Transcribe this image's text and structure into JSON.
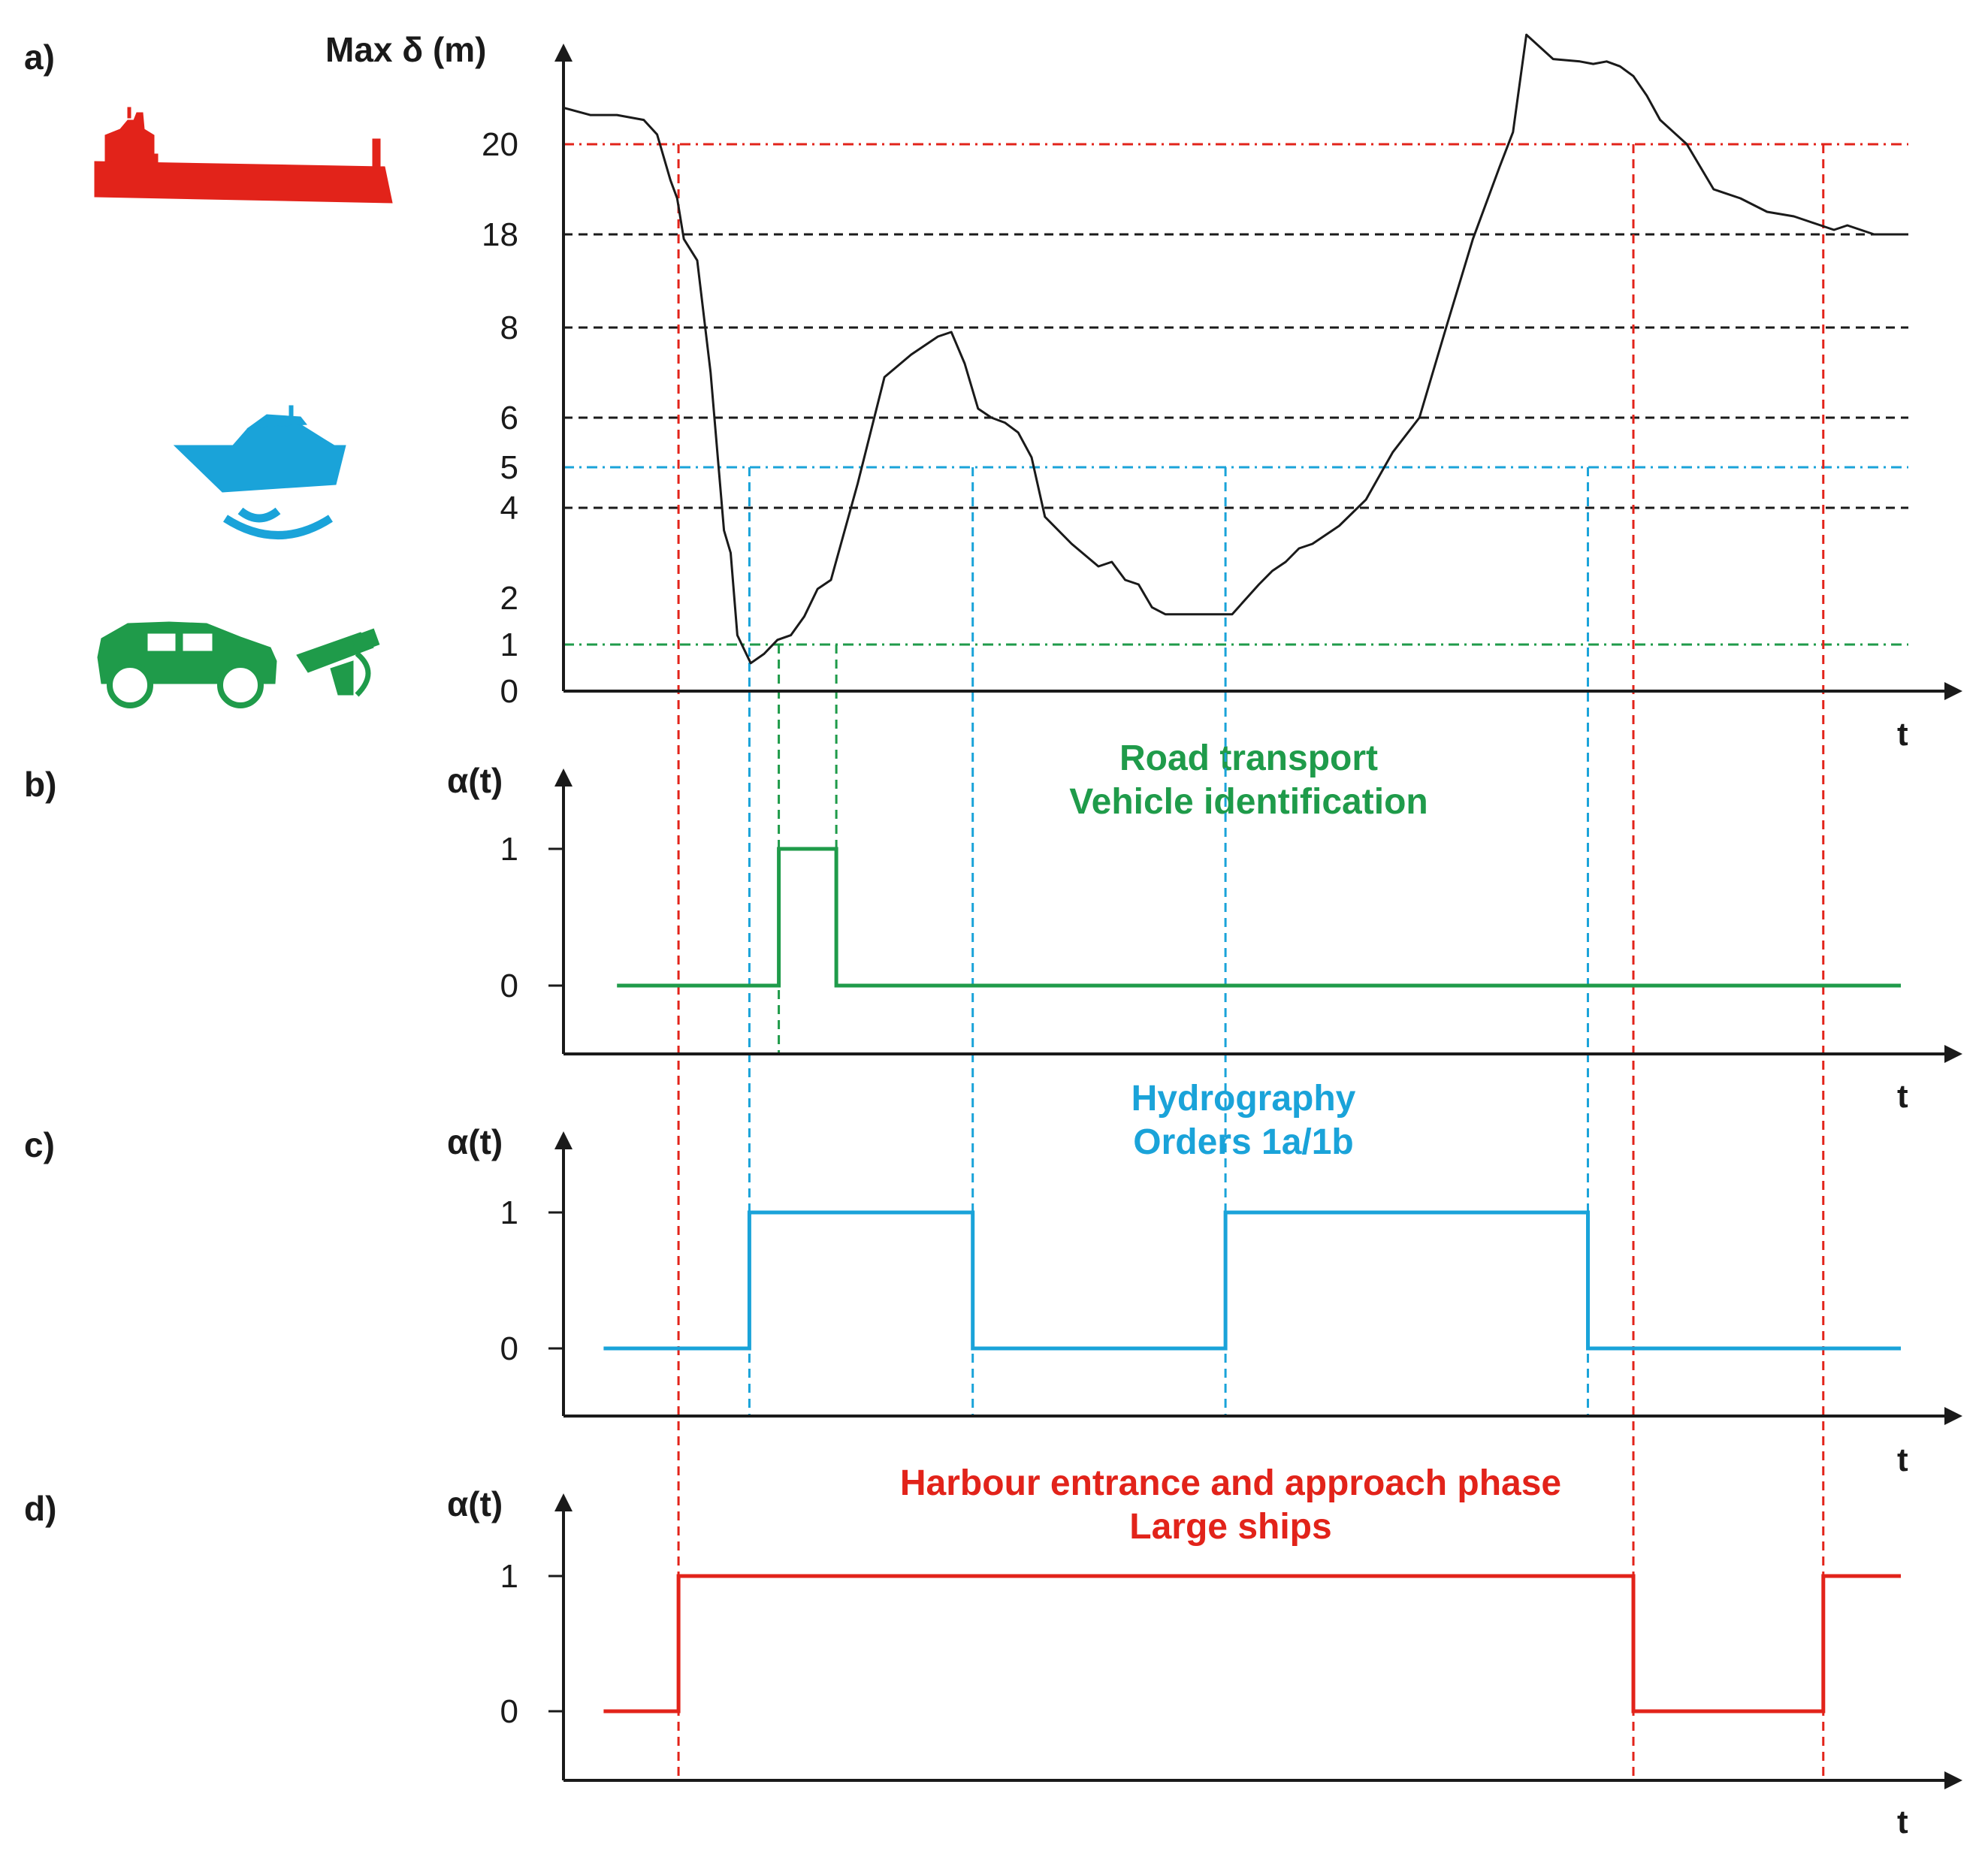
{
  "colors": {
    "ship": "#e2231a",
    "hydro": "#1aa3d9",
    "road": "#1f9b4a",
    "black": "#1a1a1a",
    "gray_dash": "#333333"
  },
  "icons": {
    "a_ship": "large-ship-icon",
    "a_boat": "survey-boat-icon",
    "a_car": "car-icon",
    "a_camera": "camera-icon"
  },
  "chart_data": [
    {
      "panel": "a)",
      "type": "line",
      "title": "",
      "ylabel": "Max δ (m)",
      "xlabel": "t",
      "yticks": [
        {
          "value": 20,
          "label": "20",
          "color": "ship"
        },
        {
          "value": 18,
          "label": "18",
          "color": "black"
        },
        {
          "value": 8,
          "label": "8",
          "color": "black"
        },
        {
          "value": 6,
          "label": "6",
          "color": "black"
        },
        {
          "value": 5,
          "label": "5",
          "color": "hydro"
        },
        {
          "value": 4,
          "label": "4",
          "color": "black"
        },
        {
          "value": 2,
          "label": "2",
          "color": "black"
        },
        {
          "value": 1,
          "label": "1",
          "color": "road"
        },
        {
          "value": 0,
          "label": "0",
          "color": "black"
        }
      ],
      "thresholds": [
        {
          "value": 20,
          "color": "ship",
          "style": "dashdot"
        },
        {
          "value": 18,
          "color": "black",
          "style": "dash"
        },
        {
          "value": 8,
          "color": "black",
          "style": "dash"
        },
        {
          "value": 6,
          "color": "black",
          "style": "dash"
        },
        {
          "value": 5,
          "color": "hydro",
          "style": "dashdot"
        },
        {
          "value": 4,
          "color": "black",
          "style": "dash"
        },
        {
          "value": 1,
          "color": "road",
          "style": "dashdot"
        }
      ],
      "x_range": [
        0,
        100
      ],
      "series": [
        {
          "x": [
            0,
            2,
            4,
            6,
            7,
            8,
            8.5,
            9,
            10,
            11,
            12,
            12.5,
            13,
            14,
            15,
            16,
            17,
            18,
            19,
            20,
            22,
            24,
            26,
            28,
            29,
            30,
            31,
            32,
            33,
            34,
            35,
            36,
            38,
            40,
            41,
            42,
            43,
            44,
            45,
            46,
            47,
            48,
            50,
            52,
            53,
            54,
            55,
            56,
            58,
            60,
            62,
            64,
            66,
            68,
            70,
            71,
            72,
            74,
            76,
            77,
            78,
            79,
            80,
            81,
            82,
            83,
            84,
            85,
            86,
            88,
            90,
            92,
            93,
            94,
            95,
            96,
            97,
            98,
            99,
            100
          ],
          "y": [
            21.5,
            21.2,
            21.2,
            21.0,
            20.4,
            19.2,
            18.8,
            17.5,
            15.2,
            7.0,
            3.5,
            3.0,
            1.2,
            0.6,
            0.8,
            1.1,
            1.2,
            1.6,
            2.2,
            2.4,
            4.6,
            6.9,
            7.4,
            7.8,
            7.9,
            7.2,
            6.2,
            6.0,
            5.9,
            5.7,
            5.2,
            3.8,
            3.2,
            2.7,
            2.8,
            2.4,
            2.3,
            1.8,
            1.65,
            1.65,
            1.65,
            1.65,
            1.65,
            2.3,
            2.6,
            2.8,
            3.1,
            3.2,
            3.6,
            4.2,
            5.3,
            6.0,
            8.0,
            17.5,
            19.5,
            20.5,
            24.5,
            23.5,
            23.4,
            23.3,
            23.4,
            23.2,
            22.8,
            22.0,
            21.0,
            20.5,
            20.0,
            19.5,
            19.0,
            18.8,
            18.5,
            18.4,
            18.3,
            18.2,
            18.1,
            18.2,
            18.1,
            18.0,
            18.0,
            18.0
          ]
        }
      ]
    },
    {
      "panel": "b)",
      "type": "step",
      "title": "Road transport\nVehicle identification",
      "ylabel": "α(t)",
      "xlabel": "t",
      "yticks": [
        "1",
        "0"
      ],
      "color": "road",
      "x_range": [
        0,
        100
      ],
      "series": [
        {
          "x": [
            4,
            16.1,
            16.1,
            20.4,
            20.4,
            100
          ],
          "y": [
            0,
            0,
            1,
            1,
            0,
            0
          ]
        }
      ]
    },
    {
      "panel": "c)",
      "type": "step",
      "title": "Hydrography\nOrders 1a/1b",
      "ylabel": "α(t)",
      "xlabel": "t",
      "yticks": [
        "1",
        "0"
      ],
      "color": "hydro",
      "x_range": [
        0,
        100
      ],
      "series": [
        {
          "x": [
            3,
            13.9,
            13.9,
            30.6,
            30.6,
            49.5,
            49.5,
            76.6,
            76.6,
            100
          ],
          "y": [
            0,
            0,
            1,
            1,
            0,
            0,
            1,
            1,
            0,
            0
          ]
        }
      ]
    },
    {
      "panel": "d)",
      "type": "step",
      "title": "Harbour entrance and approach phase\nLarge ships",
      "ylabel": "α(t)",
      "xlabel": "t",
      "yticks": [
        "1",
        "0"
      ],
      "color": "ship",
      "x_range": [
        0,
        100
      ],
      "series": [
        {
          "x": [
            3,
            8.6,
            8.6,
            80.0,
            80.0,
            94.2,
            94.2,
            100
          ],
          "y": [
            0,
            0,
            1,
            1,
            0,
            0,
            1,
            1
          ]
        }
      ]
    }
  ]
}
